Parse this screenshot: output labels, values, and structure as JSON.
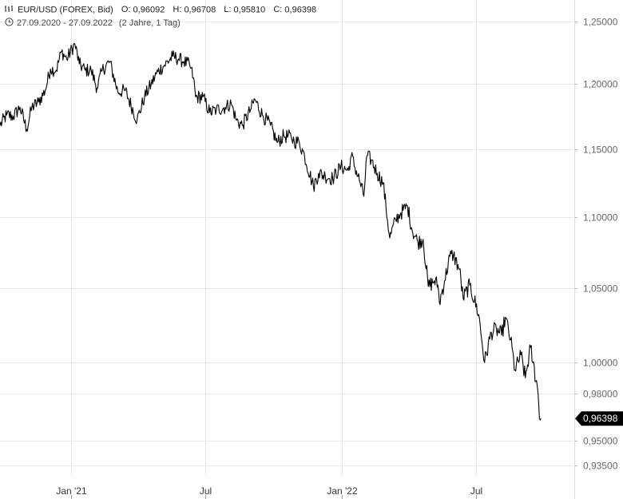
{
  "header": {
    "instrument": "EUR/USD (FOREX, Bid)",
    "open_label": "O:",
    "open": "0,96092",
    "high_label": "H:",
    "high": "0,96708",
    "low_label": "L:",
    "low": "0,95810",
    "close_label": "C:",
    "close": "0,96398",
    "date_range": "27.09.2020 - 27.09.2022",
    "period": "(2 Jahre, 1 Tag)",
    "chart_icon": "chart-type-icon",
    "clock_icon": "clock-icon"
  },
  "last_price_badge": "0,96398",
  "colors": {
    "line": "#000000",
    "grid": "#e9e9e9",
    "badge_bg": "#000000",
    "badge_text": "#ffffff",
    "axis_text": "#666666"
  },
  "chart_data": {
    "type": "line",
    "title": "EUR/USD (FOREX, Bid)",
    "xlabel": "",
    "ylabel": "",
    "y_scale": "log",
    "ylim": [
      0.928,
      1.268
    ],
    "xlim": [
      "2020-09-27",
      "2022-11-11"
    ],
    "grid": true,
    "y_ticks": [
      {
        "value": 1.25,
        "label": "1,25000"
      },
      {
        "value": 1.2,
        "label": "1,20000"
      },
      {
        "value": 1.15,
        "label": "1,15000"
      },
      {
        "value": 1.1,
        "label": "1,10000"
      },
      {
        "value": 1.05,
        "label": "1,05000"
      },
      {
        "value": 1.0,
        "label": "1,00000"
      },
      {
        "value": 0.98,
        "label": "0,98000"
      },
      {
        "value": 0.95,
        "label": "0,95000"
      },
      {
        "value": 0.935,
        "label": "0,93500"
      }
    ],
    "x_ticks": [
      {
        "date": "2021-01-01",
        "label": "Jan '21"
      },
      {
        "date": "2021-07-01",
        "label": "Jul"
      },
      {
        "date": "2022-01-01",
        "label": "Jan '22"
      },
      {
        "date": "2022-07-01",
        "label": "Jul"
      }
    ],
    "series": [
      {
        "points": [
          [
            "2020-09-27",
            1.168
          ],
          [
            "2020-10-06",
            1.176
          ],
          [
            "2020-10-15",
            1.175
          ],
          [
            "2020-10-24",
            1.182
          ],
          [
            "2020-11-02",
            1.165
          ],
          [
            "2020-11-09",
            1.182
          ],
          [
            "2020-11-18",
            1.186
          ],
          [
            "2020-11-27",
            1.195
          ],
          [
            "2020-12-04",
            1.212
          ],
          [
            "2020-12-12",
            1.211
          ],
          [
            "2020-12-19",
            1.226
          ],
          [
            "2020-12-26",
            1.22
          ],
          [
            "2021-01-06",
            1.232
          ],
          [
            "2021-01-12",
            1.216
          ],
          [
            "2021-01-20",
            1.211
          ],
          [
            "2021-01-28",
            1.211
          ],
          [
            "2021-02-05",
            1.197
          ],
          [
            "2021-02-12",
            1.211
          ],
          [
            "2021-02-22",
            1.218
          ],
          [
            "2021-03-05",
            1.194
          ],
          [
            "2021-03-15",
            1.195
          ],
          [
            "2021-03-31",
            1.172
          ],
          [
            "2021-04-10",
            1.19
          ],
          [
            "2021-04-19",
            1.2
          ],
          [
            "2021-04-28",
            1.21
          ],
          [
            "2021-05-07",
            1.215
          ],
          [
            "2021-05-18",
            1.222
          ],
          [
            "2021-05-26",
            1.22
          ],
          [
            "2021-06-02",
            1.218
          ],
          [
            "2021-06-10",
            1.215
          ],
          [
            "2021-06-15",
            1.205
          ],
          [
            "2021-06-18",
            1.19
          ],
          [
            "2021-06-28",
            1.19
          ],
          [
            "2021-07-07",
            1.178
          ],
          [
            "2021-07-16",
            1.18
          ],
          [
            "2021-07-28",
            1.182
          ],
          [
            "2021-08-05",
            1.185
          ],
          [
            "2021-08-12",
            1.172
          ],
          [
            "2021-08-20",
            1.168
          ],
          [
            "2021-08-31",
            1.18
          ],
          [
            "2021-09-06",
            1.188
          ],
          [
            "2021-09-16",
            1.176
          ],
          [
            "2021-09-27",
            1.168
          ],
          [
            "2021-10-06",
            1.155
          ],
          [
            "2021-10-15",
            1.16
          ],
          [
            "2021-10-25",
            1.159
          ],
          [
            "2021-10-29",
            1.156
          ],
          [
            "2021-11-05",
            1.155
          ],
          [
            "2021-11-12",
            1.145
          ],
          [
            "2021-11-24",
            1.122
          ],
          [
            "2021-12-01",
            1.132
          ],
          [
            "2021-12-10",
            1.13
          ],
          [
            "2021-12-20",
            1.128
          ],
          [
            "2021-12-31",
            1.137
          ],
          [
            "2022-01-10",
            1.134
          ],
          [
            "2022-01-14",
            1.145
          ],
          [
            "2022-01-26",
            1.125
          ],
          [
            "2022-01-31",
            1.115
          ],
          [
            "2022-02-04",
            1.145
          ],
          [
            "2022-02-10",
            1.142
          ],
          [
            "2022-02-18",
            1.132
          ],
          [
            "2022-02-26",
            1.125
          ],
          [
            "2022-03-07",
            1.085
          ],
          [
            "2022-03-15",
            1.098
          ],
          [
            "2022-03-22",
            1.103
          ],
          [
            "2022-03-31",
            1.108
          ],
          [
            "2022-04-06",
            1.091
          ],
          [
            "2022-04-14",
            1.082
          ],
          [
            "2022-04-21",
            1.084
          ],
          [
            "2022-04-28",
            1.051
          ],
          [
            "2022-05-06",
            1.055
          ],
          [
            "2022-05-11",
            1.052
          ],
          [
            "2022-05-13",
            1.04
          ],
          [
            "2022-05-20",
            1.055
          ],
          [
            "2022-05-27",
            1.072
          ],
          [
            "2022-06-01",
            1.073
          ],
          [
            "2022-06-09",
            1.063
          ],
          [
            "2022-06-14",
            1.043
          ],
          [
            "2022-06-23",
            1.052
          ],
          [
            "2022-07-05",
            1.032
          ],
          [
            "2022-07-13",
            1.0
          ],
          [
            "2022-07-22",
            1.02
          ],
          [
            "2022-07-29",
            1.022
          ],
          [
            "2022-08-05",
            1.018
          ],
          [
            "2022-08-10",
            1.03
          ],
          [
            "2022-08-17",
            1.015
          ],
          [
            "2022-08-23",
            0.995
          ],
          [
            "2022-08-31",
            1.005
          ],
          [
            "2022-09-06",
            0.99
          ],
          [
            "2022-09-13",
            1.01
          ],
          [
            "2022-09-16",
            1.0
          ],
          [
            "2022-09-22",
            0.985
          ],
          [
            "2022-09-26",
            0.963
          ],
          [
            "2022-09-27",
            0.964
          ]
        ]
      }
    ]
  }
}
